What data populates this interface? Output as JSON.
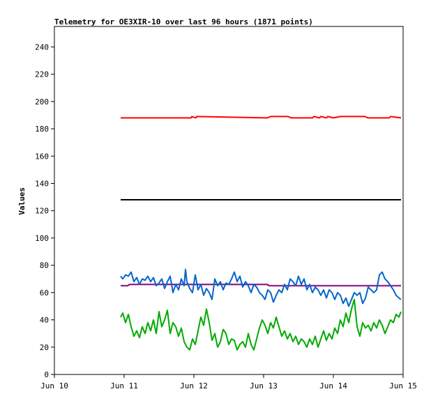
{
  "chart_data": {
    "type": "line",
    "title": "Telemetry for OE3XIR-10 over last 96 hours (1871 points)",
    "xlabel": "",
    "ylabel": "Values",
    "ylim": [
      0,
      255
    ],
    "y_ticks": [
      0,
      20,
      40,
      60,
      80,
      100,
      120,
      140,
      160,
      180,
      200,
      220,
      240
    ],
    "x_ticks": [
      {
        "label": "Jun 10",
        "day": 10
      },
      {
        "label": "Jun 11",
        "day": 11
      },
      {
        "label": "Jun 12",
        "day": 12
      },
      {
        "label": "Jun 13",
        "day": 13
      },
      {
        "label": "Jun 14",
        "day": 14
      },
      {
        "label": "Jun 15",
        "day": 15
      }
    ],
    "xlim_days": [
      10,
      15
    ],
    "grid": false,
    "legend": "none",
    "series": [
      {
        "color": "#ff0000",
        "x_days": [
          10.95,
          11.96,
          11.97,
          12.03,
          12.04,
          13.05,
          13.1,
          13.2,
          13.3,
          13.35,
          13.4,
          13.7,
          13.72,
          13.8,
          13.82,
          13.9,
          13.92,
          14.0,
          14.1,
          14.2,
          14.3,
          14.45,
          14.5,
          14.8,
          14.82,
          14.97
        ],
        "values": [
          188,
          188,
          189,
          188,
          189,
          188,
          189,
          189,
          189,
          189,
          188,
          188,
          189,
          188,
          189,
          188,
          189,
          188,
          189,
          189,
          189,
          189,
          188,
          188,
          189,
          188
        ]
      },
      {
        "color": "#000000",
        "x_days": [
          10.95,
          14.97
        ],
        "values": [
          128,
          128
        ]
      },
      {
        "color": "#800080",
        "x_days": [
          10.95,
          11.05,
          11.08,
          11.5,
          12.2,
          12.3,
          13.05,
          13.08,
          14.0,
          14.4,
          14.97
        ],
        "values": [
          65,
          65,
          66,
          66,
          66,
          66,
          66,
          65,
          65,
          65,
          65
        ]
      },
      {
        "color": "#0066cc",
        "x_days": [
          10.95,
          10.98,
          11.02,
          11.06,
          11.1,
          11.14,
          11.18,
          11.22,
          11.26,
          11.3,
          11.34,
          11.38,
          11.42,
          11.46,
          11.5,
          11.54,
          11.58,
          11.62,
          11.66,
          11.7,
          11.74,
          11.78,
          11.82,
          11.86,
          11.88,
          11.9,
          11.94,
          11.98,
          12.02,
          12.06,
          12.1,
          12.14,
          12.18,
          12.22,
          12.26,
          12.3,
          12.34,
          12.38,
          12.42,
          12.46,
          12.5,
          12.54,
          12.58,
          12.62,
          12.66,
          12.7,
          12.74,
          12.78,
          12.82,
          12.86,
          12.9,
          12.94,
          12.98,
          13.02,
          13.06,
          13.1,
          13.14,
          13.18,
          13.22,
          13.26,
          13.3,
          13.34,
          13.38,
          13.42,
          13.46,
          13.5,
          13.54,
          13.58,
          13.62,
          13.66,
          13.7,
          13.74,
          13.78,
          13.82,
          13.86,
          13.9,
          13.94,
          13.98,
          14.02,
          14.06,
          14.1,
          14.14,
          14.18,
          14.22,
          14.26,
          14.3,
          14.34,
          14.38,
          14.42,
          14.46,
          14.5,
          14.54,
          14.58,
          14.62,
          14.66,
          14.7,
          14.74,
          14.78,
          14.82,
          14.86,
          14.9,
          14.94,
          14.97
        ],
        "values": [
          72,
          70,
          73,
          72,
          75,
          68,
          71,
          66,
          70,
          69,
          72,
          68,
          71,
          65,
          67,
          70,
          63,
          68,
          72,
          60,
          66,
          62,
          70,
          65,
          77,
          68,
          63,
          60,
          73,
          62,
          66,
          58,
          63,
          60,
          55,
          70,
          65,
          68,
          62,
          67,
          66,
          70,
          75,
          68,
          72,
          64,
          68,
          65,
          60,
          66,
          64,
          60,
          58,
          55,
          62,
          60,
          53,
          58,
          62,
          60,
          66,
          62,
          70,
          68,
          65,
          72,
          66,
          70,
          62,
          66,
          60,
          64,
          62,
          58,
          62,
          56,
          62,
          60,
          55,
          60,
          58,
          52,
          56,
          50,
          55,
          60,
          58,
          60,
          52,
          56,
          64,
          62,
          60,
          62,
          73,
          75,
          70,
          68,
          65,
          62,
          58,
          56,
          55
        ]
      },
      {
        "color": "#00aa00",
        "x_days": [
          10.95,
          10.98,
          11.02,
          11.06,
          11.1,
          11.14,
          11.18,
          11.22,
          11.26,
          11.3,
          11.34,
          11.38,
          11.42,
          11.46,
          11.5,
          11.54,
          11.58,
          11.62,
          11.66,
          11.7,
          11.74,
          11.78,
          11.82,
          11.86,
          11.9,
          11.94,
          11.98,
          12.02,
          12.06,
          12.1,
          12.14,
          12.18,
          12.22,
          12.26,
          12.3,
          12.34,
          12.38,
          12.42,
          12.46,
          12.5,
          12.54,
          12.58,
          12.62,
          12.66,
          12.7,
          12.74,
          12.78,
          12.82,
          12.86,
          12.9,
          12.94,
          12.98,
          13.02,
          13.06,
          13.1,
          13.14,
          13.18,
          13.22,
          13.26,
          13.3,
          13.34,
          13.38,
          13.42,
          13.46,
          13.5,
          13.54,
          13.58,
          13.62,
          13.66,
          13.7,
          13.74,
          13.78,
          13.82,
          13.86,
          13.9,
          13.94,
          13.98,
          14.02,
          14.06,
          14.1,
          14.14,
          14.18,
          14.22,
          14.26,
          14.3,
          14.34,
          14.38,
          14.42,
          14.46,
          14.5,
          14.54,
          14.58,
          14.62,
          14.66,
          14.7,
          14.74,
          14.78,
          14.82,
          14.86,
          14.9,
          14.94,
          14.97
        ],
        "values": [
          42,
          45,
          38,
          44,
          35,
          28,
          32,
          27,
          35,
          30,
          38,
          32,
          40,
          30,
          46,
          35,
          40,
          47,
          30,
          38,
          35,
          28,
          34,
          24,
          20,
          18,
          26,
          22,
          32,
          42,
          36,
          48,
          38,
          25,
          30,
          20,
          24,
          33,
          30,
          22,
          26,
          25,
          18,
          22,
          24,
          20,
          30,
          22,
          18,
          26,
          34,
          40,
          36,
          30,
          38,
          34,
          42,
          35,
          28,
          32,
          26,
          30,
          24,
          28,
          22,
          26,
          24,
          20,
          26,
          22,
          28,
          20,
          26,
          32,
          25,
          30,
          26,
          34,
          30,
          40,
          35,
          45,
          38,
          48,
          55,
          35,
          28,
          38,
          34,
          36,
          32,
          38,
          34,
          40,
          36,
          30,
          35,
          40,
          38,
          44,
          42,
          46
        ]
      }
    ]
  }
}
